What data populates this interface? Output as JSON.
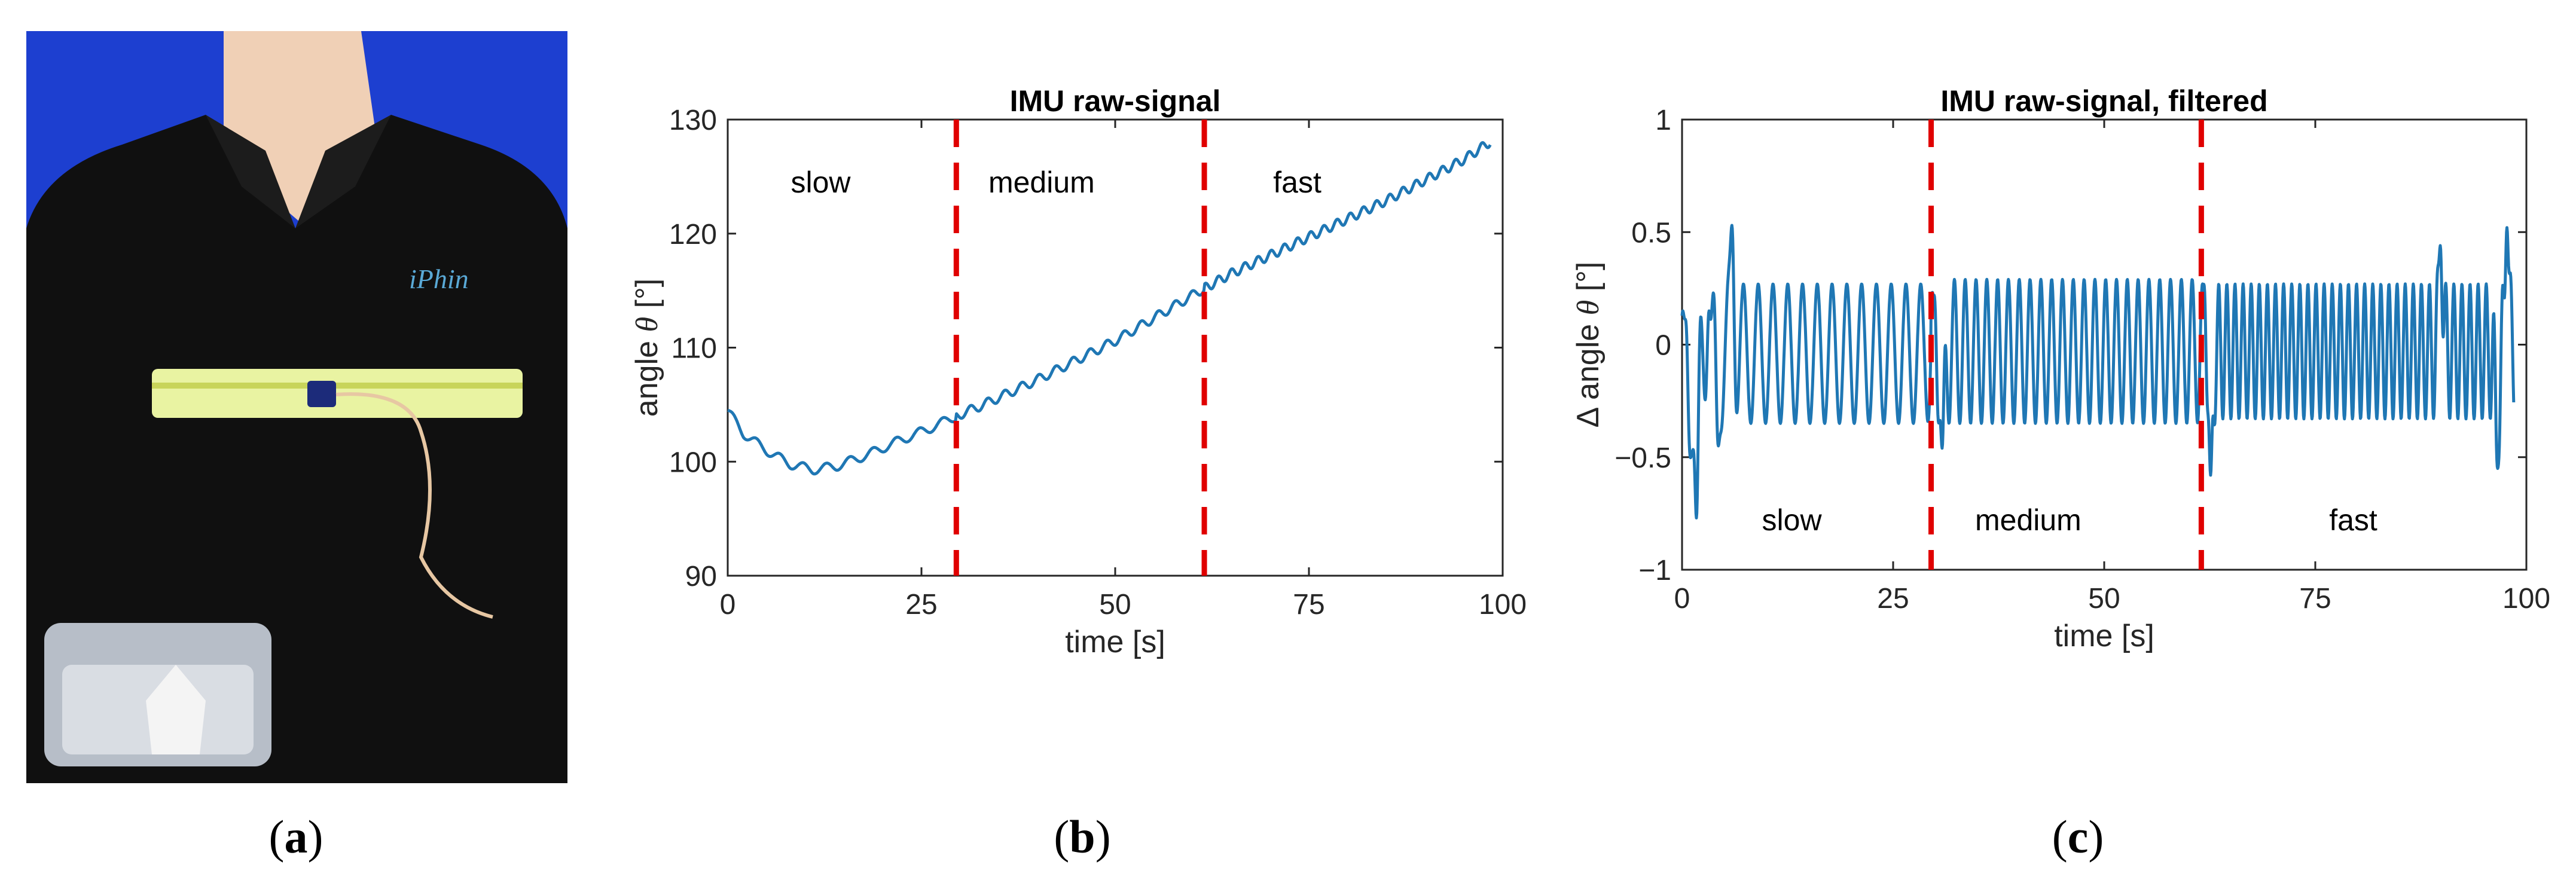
{
  "panels": {
    "a": {
      "caption": {
        "open": "(",
        "letter": "a",
        "close": ")"
      }
    },
    "b": {
      "caption": {
        "open": "(",
        "letter": "b",
        "close": ")"
      }
    },
    "c": {
      "caption": {
        "open": "(",
        "letter": "c",
        "close": ")"
      }
    }
  },
  "colors": {
    "signal": "#1f77b4",
    "marker": "#e00000",
    "axis": "#262626",
    "photo_bg": "#1d3fd0",
    "shirt": "#101010",
    "belt": "#e9f3a2"
  },
  "chart_data": [
    {
      "type": "line",
      "title": "IMU raw-signal",
      "xlabel": "time [s]",
      "ylabel_parts": [
        "angle ",
        "θ",
        " [°]"
      ],
      "xlim": [
        0,
        100
      ],
      "ylim": [
        90,
        130
      ],
      "xticks": [
        0,
        25,
        50,
        75,
        100
      ],
      "xtick_labels": [
        "0",
        "25",
        "50",
        "75",
        "100"
      ],
      "yticks": [
        90,
        100,
        110,
        120,
        130
      ],
      "ytick_labels": [
        "90",
        "100",
        "110",
        "120",
        "130"
      ],
      "markers": [
        29.5,
        61.5
      ],
      "regions": [
        {
          "label": "slow",
          "x": 12,
          "y": 124.5
        },
        {
          "label": "medium",
          "x": 40.5,
          "y": 124.5
        },
        {
          "label": "fast",
          "x": 73.5,
          "y": 124.5
        }
      ],
      "series": [
        {
          "name": "angle",
          "x": [
            0,
            2,
            5,
            8,
            11,
            14,
            18,
            22,
            26,
            29.5,
            33,
            40,
            50,
            58,
            61.5,
            65,
            75,
            85,
            95,
            98.5
          ],
          "y": [
            104.5,
            102.5,
            101,
            99.8,
            99.3,
            99.6,
            100.6,
            101.8,
            102.9,
            104,
            105,
            107.2,
            110.6,
            113.8,
            115.2,
            116.5,
            119.7,
            122.9,
            126.5,
            128.1
          ],
          "ripple": {
            "amplitude": 0.4,
            "period_s": [
              3.0,
              2.2,
              1.7
            ],
            "breaks": [
              29.5,
              61.5
            ]
          }
        }
      ]
    },
    {
      "type": "line",
      "title": "IMU raw-signal, filtered",
      "xlabel": "time [s]",
      "ylabel_parts": [
        "Δ angle ",
        "θ",
        " [°]"
      ],
      "xlim": [
        0,
        100
      ],
      "ylim": [
        -1,
        1
      ],
      "xticks": [
        0,
        25,
        50,
        75,
        100
      ],
      "xtick_labels": [
        "0",
        "25",
        "50",
        "75",
        "100"
      ],
      "yticks": [
        -1,
        -0.5,
        0,
        0.5,
        1
      ],
      "ytick_labels": [
        "−1",
        "−0.5",
        "0",
        "0.5",
        "1"
      ],
      "markers": [
        29.5,
        61.5
      ],
      "regions": [
        {
          "label": "slow",
          "x": 13,
          "y": -0.78
        },
        {
          "label": "medium",
          "x": 41,
          "y": -0.78
        },
        {
          "label": "fast",
          "x": 79.5,
          "y": -0.78
        }
      ],
      "series": [
        {
          "name": "filtered angle",
          "segments": [
            {
              "t0": 0,
              "t1": 29.5,
              "period_s": 1.75,
              "amplitude": 0.31,
              "offset": -0.04
            },
            {
              "t0": 29.5,
              "t1": 61.5,
              "period_s": 1.28,
              "amplitude": 0.32,
              "offset": -0.03
            },
            {
              "t0": 61.5,
              "t1": 98.5,
              "period_s": 0.96,
              "amplitude": 0.3,
              "offset": -0.03
            }
          ],
          "extremes": [
            {
              "x": 0.3,
              "y": 0.12
            },
            {
              "x": 1.0,
              "y": -0.5
            },
            {
              "x": 1.7,
              "y": -0.77
            },
            {
              "x": 3.2,
              "y": 0.15
            },
            {
              "x": 4.3,
              "y": -0.45
            },
            {
              "x": 5.9,
              "y": 0.53
            },
            {
              "x": 29.8,
              "y": 0.22
            },
            {
              "x": 30.8,
              "y": -0.46
            },
            {
              "x": 61.8,
              "y": 0.27
            },
            {
              "x": 62.6,
              "y": -0.58
            },
            {
              "x": 89.8,
              "y": 0.44
            },
            {
              "x": 96.6,
              "y": -0.55
            },
            {
              "x": 97.7,
              "y": 0.52
            }
          ]
        }
      ]
    }
  ]
}
